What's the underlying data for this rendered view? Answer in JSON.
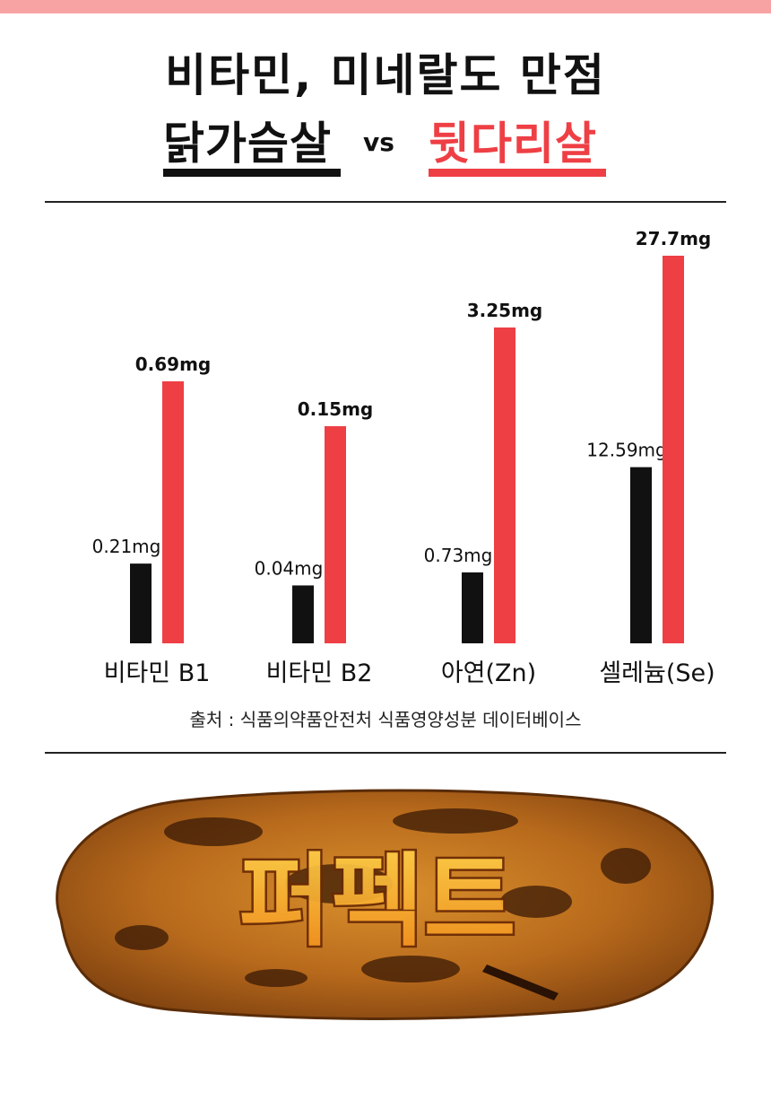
{
  "header": {
    "line1": "비타민, 미네랄도 만점",
    "left_item": "닭가슴살",
    "vs": "vs",
    "right_item": "뒷다리살"
  },
  "source": "출처 : 식품의약품안전처 식품영양성분 데이터베이스",
  "image": {
    "overlay_text": "퍼펙트"
  },
  "colors": {
    "accent": "#ee3f45",
    "dark": "#111111",
    "top_bar": "#f7a3a3"
  },
  "chart_data": {
    "type": "bar",
    "categories": [
      "비타민 B1",
      "비타민 B2",
      "아연(Zn)",
      "셀레늄(Se)"
    ],
    "series": [
      {
        "values": [
          0.21,
          0.04,
          0.73,
          12.59
        ],
        "labels": [
          "0.21mg",
          "0.04mg",
          "0.73mg",
          "12.59mg"
        ],
        "color": "#111111",
        "label_weight": "normal"
      },
      {
        "values": [
          0.69,
          0.15,
          3.25,
          27.7
        ],
        "labels": [
          "0.69mg",
          "0.15mg",
          "3.25mg",
          "27.7mg"
        ],
        "color": "#ee3f45",
        "label_weight": "bold"
      }
    ],
    "title": "",
    "xlabel": "",
    "ylabel": "",
    "unit": "mg",
    "note": "each category group is scaled independently",
    "grid": false,
    "legend": "none"
  }
}
